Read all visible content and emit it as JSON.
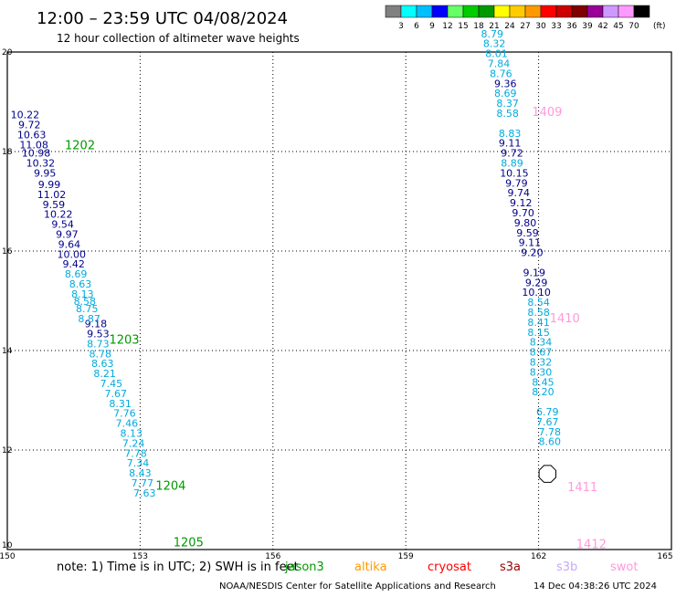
{
  "header": {
    "title": "12:00 – 23:59 UTC 04/08/2024",
    "subtitle": "12 hour collection of altimeter wave heights"
  },
  "colorbar": {
    "unit": "(ft)",
    "colors": [
      "#808080",
      "#00ffff",
      "#00bfff",
      "#0000ff",
      "#66ff66",
      "#00cc00",
      "#009900",
      "#ffff00",
      "#ffcc00",
      "#ff9900",
      "#ff0000",
      "#cc0000",
      "#800000",
      "#990099",
      "#cc99ff",
      "#ff99ff",
      "#000000"
    ],
    "labels": [
      "3",
      "6",
      "9",
      "12",
      "15",
      "18",
      "21",
      "24",
      "27",
      "30",
      "33",
      "36",
      "39",
      "42",
      "45",
      "70"
    ]
  },
  "footer": {
    "note": "note:  1) Time is in UTC; 2) SWH is in feet",
    "satellites": [
      {
        "name": "jason3",
        "color": "#009900"
      },
      {
        "name": "altika",
        "color": "#ff9900"
      },
      {
        "name": "cryosat",
        "color": "#ff0000"
      },
      {
        "name": "s3a",
        "color": "#990000"
      },
      {
        "name": "s3b",
        "color": "#c8a8ff"
      },
      {
        "name": "swot",
        "color": "#ff99dd"
      }
    ],
    "credit": "NOAA/NESDIS Center for Satellite Applications and Research",
    "timestamp": "14 Dec 04:38:26 UTC 2024"
  },
  "chart_data": {
    "type": "scatter",
    "title": "12:00 – 23:59 UTC 04/08/2024",
    "subtitle": "12 hour collection of altimeter wave heights",
    "xlim": [
      150,
      165
    ],
    "ylim": [
      10,
      20
    ],
    "xticks": [
      "150",
      "153",
      "156",
      "159",
      "162",
      "165"
    ],
    "yticks": [
      "10",
      "12",
      "14",
      "16",
      "18",
      "20"
    ],
    "grid": true,
    "series": [
      {
        "color": "#00008b",
        "points": [
          {
            "x": 150.4,
            "y": 18.74,
            "label": "10.22"
          },
          {
            "x": 150.5,
            "y": 18.54,
            "label": "9.72"
          },
          {
            "x": 150.55,
            "y": 18.34,
            "label": "10.63"
          },
          {
            "x": 150.6,
            "y": 18.14,
            "label": "11.08"
          },
          {
            "x": 150.65,
            "y": 17.97,
            "label": "10.98"
          },
          {
            "x": 150.75,
            "y": 17.77,
            "label": "10.32"
          },
          {
            "x": 150.85,
            "y": 17.57,
            "label": "9.95"
          },
          {
            "x": 150.95,
            "y": 17.34,
            "label": "9.99"
          },
          {
            "x": 151.0,
            "y": 17.14,
            "label": "11.02"
          },
          {
            "x": 151.05,
            "y": 16.94,
            "label": "9.59"
          },
          {
            "x": 151.15,
            "y": 16.74,
            "label": "10.22"
          },
          {
            "x": 151.25,
            "y": 16.54,
            "label": "9.54"
          },
          {
            "x": 151.35,
            "y": 16.34,
            "label": "9.97"
          },
          {
            "x": 151.4,
            "y": 16.14,
            "label": "9.64"
          },
          {
            "x": 151.45,
            "y": 15.94,
            "label": "10.00"
          },
          {
            "x": 151.5,
            "y": 15.74,
            "label": "9.42"
          },
          {
            "x": 152.0,
            "y": 14.54,
            "label": "9.18"
          },
          {
            "x": 152.05,
            "y": 14.34,
            "label": "9.53"
          },
          {
            "x": 161.25,
            "y": 19.37,
            "label": "9.36"
          },
          {
            "x": 161.35,
            "y": 18.17,
            "label": "9.11"
          },
          {
            "x": 161.4,
            "y": 17.97,
            "label": "9.72"
          },
          {
            "x": 161.45,
            "y": 17.57,
            "label": "10.15"
          },
          {
            "x": 161.5,
            "y": 17.37,
            "label": "9.79"
          },
          {
            "x": 161.55,
            "y": 17.17,
            "label": "9.74"
          },
          {
            "x": 161.6,
            "y": 16.97,
            "label": "9.12"
          },
          {
            "x": 161.65,
            "y": 16.77,
            "label": "9.70"
          },
          {
            "x": 161.7,
            "y": 16.57,
            "label": "9.80"
          },
          {
            "x": 161.75,
            "y": 16.37,
            "label": "9.59"
          },
          {
            "x": 161.8,
            "y": 16.17,
            "label": "9.11"
          },
          {
            "x": 161.85,
            "y": 15.97,
            "label": "9.20"
          },
          {
            "x": 161.9,
            "y": 15.57,
            "label": "9.19"
          },
          {
            "x": 161.95,
            "y": 15.37,
            "label": "9.29"
          },
          {
            "x": 161.95,
            "y": 15.17,
            "label": "10.10"
          }
        ]
      },
      {
        "color": "#00aadd",
        "points": [
          {
            "x": 151.55,
            "y": 15.54,
            "label": "8.69"
          },
          {
            "x": 151.65,
            "y": 15.34,
            "label": "8.63"
          },
          {
            "x": 151.7,
            "y": 15.14,
            "label": "8.13"
          },
          {
            "x": 151.75,
            "y": 14.99,
            "label": "8.58"
          },
          {
            "x": 151.8,
            "y": 14.84,
            "label": "8.75"
          },
          {
            "x": 151.85,
            "y": 14.64,
            "label": "8.87"
          },
          {
            "x": 152.05,
            "y": 14.14,
            "label": "8.73"
          },
          {
            "x": 152.1,
            "y": 13.94,
            "label": "8.78"
          },
          {
            "x": 152.15,
            "y": 13.74,
            "label": "8.63"
          },
          {
            "x": 152.2,
            "y": 13.54,
            "label": "8.21"
          },
          {
            "x": 152.35,
            "y": 13.34,
            "label": "7.45"
          },
          {
            "x": 152.45,
            "y": 13.14,
            "label": "7.67"
          },
          {
            "x": 152.55,
            "y": 12.94,
            "label": "8.31"
          },
          {
            "x": 152.65,
            "y": 12.74,
            "label": "7.76"
          },
          {
            "x": 152.7,
            "y": 12.54,
            "label": "7.46"
          },
          {
            "x": 152.8,
            "y": 12.34,
            "label": "8.13"
          },
          {
            "x": 152.85,
            "y": 12.14,
            "label": "7.24"
          },
          {
            "x": 152.9,
            "y": 11.94,
            "label": "7.78"
          },
          {
            "x": 152.95,
            "y": 11.74,
            "label": "7.34"
          },
          {
            "x": 153.0,
            "y": 11.54,
            "label": "8.43"
          },
          {
            "x": 153.05,
            "y": 11.34,
            "label": "7.77"
          },
          {
            "x": 153.1,
            "y": 11.14,
            "label": "7.63"
          },
          {
            "x": 160.95,
            "y": 20.37,
            "label": "8.79"
          },
          {
            "x": 161.0,
            "y": 20.17,
            "label": "8.32"
          },
          {
            "x": 161.05,
            "y": 19.97,
            "label": "8.01"
          },
          {
            "x": 161.1,
            "y": 19.77,
            "label": "7.84"
          },
          {
            "x": 161.15,
            "y": 19.57,
            "label": "8.76"
          },
          {
            "x": 161.25,
            "y": 19.17,
            "label": "8.69"
          },
          {
            "x": 161.3,
            "y": 18.97,
            "label": "8.37"
          },
          {
            "x": 161.3,
            "y": 18.77,
            "label": "8.58"
          },
          {
            "x": 161.35,
            "y": 18.37,
            "label": "8.83"
          },
          {
            "x": 161.4,
            "y": 17.77,
            "label": "8.89"
          },
          {
            "x": 162.0,
            "y": 14.97,
            "label": "8.54"
          },
          {
            "x": 162.0,
            "y": 14.77,
            "label": "8.58"
          },
          {
            "x": 162.0,
            "y": 14.57,
            "label": "8.41"
          },
          {
            "x": 162.0,
            "y": 14.37,
            "label": "8.15"
          },
          {
            "x": 162.05,
            "y": 14.17,
            "label": "8.34"
          },
          {
            "x": 162.05,
            "y": 13.97,
            "label": "8.67"
          },
          {
            "x": 162.05,
            "y": 13.77,
            "label": "8.32"
          },
          {
            "x": 162.05,
            "y": 13.57,
            "label": "8.30"
          },
          {
            "x": 162.1,
            "y": 13.37,
            "label": "8.45"
          },
          {
            "x": 162.1,
            "y": 13.17,
            "label": "8.20"
          },
          {
            "x": 162.2,
            "y": 12.77,
            "label": "6.79"
          },
          {
            "x": 162.2,
            "y": 12.57,
            "label": "7.67"
          },
          {
            "x": 162.25,
            "y": 12.37,
            "label": "7.78"
          },
          {
            "x": 162.25,
            "y": 12.17,
            "label": "8.60"
          }
        ]
      }
    ],
    "annotations": [
      {
        "x": 151.3,
        "y": 18.14,
        "text": "1202",
        "color": "#009900"
      },
      {
        "x": 152.3,
        "y": 14.23,
        "text": "1203",
        "color": "#009900"
      },
      {
        "x": 153.35,
        "y": 11.29,
        "text": "1204",
        "color": "#009900"
      },
      {
        "x": 153.75,
        "y": 10.16,
        "text": "1205",
        "color": "#009900"
      },
      {
        "x": 161.85,
        "y": 18.81,
        "text": "1409",
        "color": "#ff99dd"
      },
      {
        "x": 162.25,
        "y": 14.66,
        "text": "1410",
        "color": "#ff99dd"
      },
      {
        "x": 162.65,
        "y": 11.27,
        "text": "1411",
        "color": "#ff99dd"
      },
      {
        "x": 162.85,
        "y": 10.12,
        "text": "1412",
        "color": "#ff99dd"
      }
    ],
    "marker": {
      "x": 162.2,
      "y": 11.52
    }
  }
}
